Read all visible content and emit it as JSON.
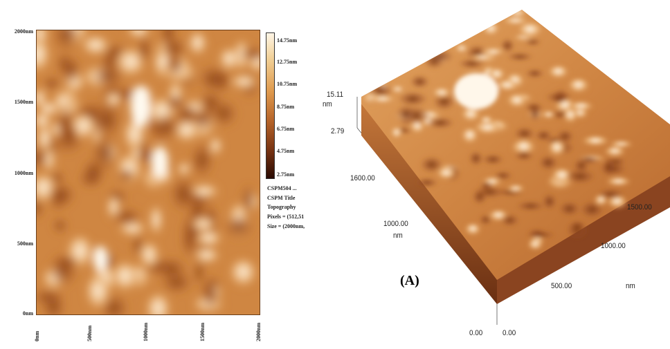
{
  "map2d": {
    "y_ticks": [
      "2000nm",
      "1500nm",
      "1000nm",
      "500nm",
      "0nm"
    ],
    "x_ticks": [
      "0nm",
      "500nm",
      "1000nm",
      "1500nm",
      "2000nm"
    ]
  },
  "colorbar": {
    "labels": [
      "14.75nm",
      "12.75nm",
      "10.75nm",
      "8.75nm",
      "6.75nm",
      "4.75nm",
      "2.75nm"
    ],
    "colors": [
      "#fff6e6",
      "#f1cf95",
      "#df9a4e",
      "#b7652a",
      "#7a3513",
      "#2a0a02"
    ]
  },
  "info": {
    "lines": [
      "CSPM504 ...",
      "CSPM Title",
      "Topography",
      "Pixels = (512,51",
      "Size = (2000nm,"
    ]
  },
  "surface3d": {
    "z_top": "15.11",
    "z_unit": "nm",
    "z_bottom": "2.79",
    "left_axis_tick_1": "1600.00",
    "left_axis_tick_2": "1000.00",
    "left_axis_unit": "nm",
    "right_axis_tick_1": "1500.00",
    "right_axis_tick_2": "1000.00",
    "right_axis_tick_3": "500.00",
    "right_axis_unit": "nm",
    "origin": "0.00",
    "origin_right": "0.00"
  },
  "panel_label": "(A)",
  "palette": {
    "surface_light": "#fff3df",
    "surface_mid": "#d98b45",
    "surface_dark": "#7a3513"
  }
}
